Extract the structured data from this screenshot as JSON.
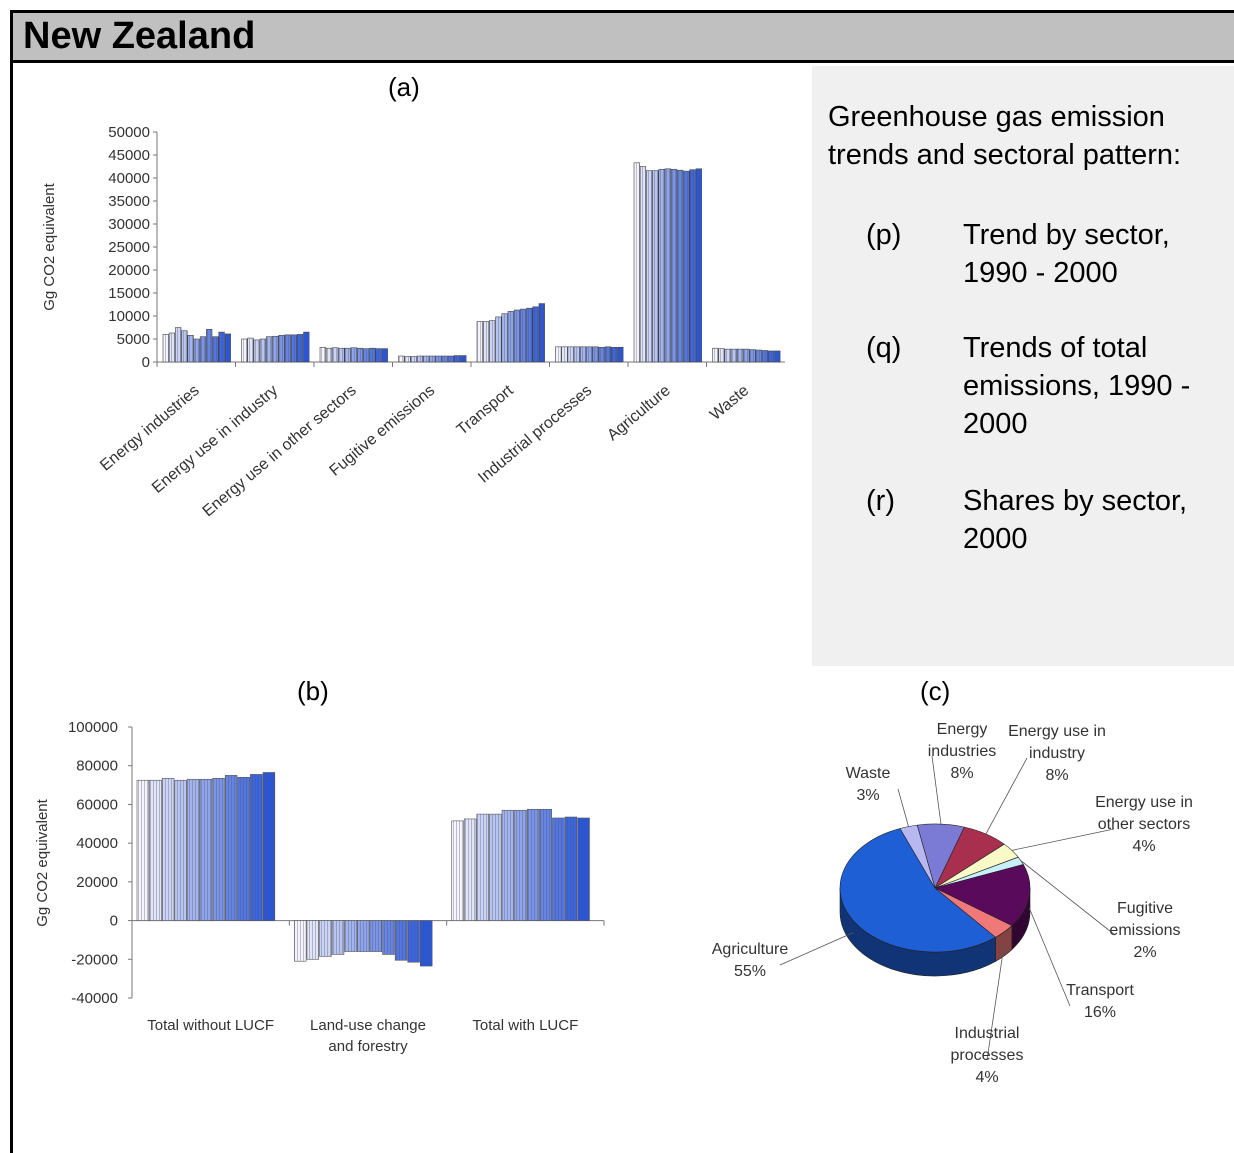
{
  "header": {
    "title": "New Zealand"
  },
  "side_panel": {
    "title": "Greenhouse gas emission trends and sectoral pattern:",
    "items": [
      {
        "label": "(p)",
        "text": "Trend by sector, 1990 - 2000"
      },
      {
        "label": "(q)",
        "text": "Trends of total emissions, 1990 - 2000"
      },
      {
        "label": "(r)",
        "text": "Shares by sector, 2000"
      }
    ]
  },
  "chart_data": [
    {
      "type": "bar",
      "panel_label": "(a)",
      "ylabel": "Gg CO2 equivalent",
      "ylim": [
        0,
        50000
      ],
      "yticks": [
        "0",
        "5000",
        "10000",
        "15000",
        "20000",
        "25000",
        "30000",
        "35000",
        "40000",
        "45000",
        "50000"
      ],
      "categories": [
        "Energy industries",
        "Energy use in industry",
        "Energy use in other sectors",
        "Fugitive emissions",
        "Transport",
        "Industrial processes",
        "Agriculture",
        "Waste"
      ],
      "bars_per_category": 11,
      "values": [
        [
          6000,
          6300,
          7500,
          6800,
          5800,
          5000,
          5500,
          7100,
          5500,
          6500,
          6100
        ],
        [
          5000,
          5200,
          4800,
          5000,
          5500,
          5600,
          5800,
          5900,
          5900,
          6000,
          6500
        ],
        [
          3200,
          3000,
          3100,
          3000,
          3000,
          3100,
          3000,
          2900,
          3000,
          2900,
          2900
        ],
        [
          1300,
          1200,
          1200,
          1300,
          1300,
          1300,
          1300,
          1300,
          1300,
          1400,
          1400
        ],
        [
          8800,
          8800,
          9000,
          9800,
          10500,
          11000,
          11300,
          11500,
          11700,
          12000,
          12700
        ],
        [
          3300,
          3300,
          3300,
          3300,
          3300,
          3300,
          3300,
          3200,
          3300,
          3200,
          3200
        ],
        [
          43300,
          42500,
          41600,
          41600,
          41900,
          42000,
          41900,
          41700,
          41500,
          41800,
          42000
        ],
        [
          3000,
          2900,
          2800,
          2800,
          2800,
          2800,
          2700,
          2600,
          2500,
          2400,
          2400
        ]
      ]
    },
    {
      "type": "bar",
      "panel_label": "(b)",
      "ylabel": "Gg CO2 equivalent",
      "ylim": [
        -40000,
        100000
      ],
      "yticks": [
        "-40000",
        "-20000",
        "0",
        "20000",
        "40000",
        "60000",
        "80000",
        "100000"
      ],
      "categories": [
        "Total without LUCF",
        "Land-use change and forestry",
        "Total with LUCF"
      ],
      "category_lines": [
        [
          "Total without LUCF"
        ],
        [
          "Land-use change",
          "and forestry"
        ],
        [
          "Total with LUCF"
        ]
      ],
      "bars_per_category": 11,
      "values": [
        [
          72500,
          72500,
          73500,
          72500,
          73000,
          73000,
          73500,
          75000,
          74000,
          75500,
          76500
        ],
        [
          -21000,
          -20000,
          -18500,
          -17500,
          -16000,
          -16000,
          -16000,
          -17500,
          -20500,
          -21500,
          -23500
        ],
        [
          51500,
          52500,
          55000,
          55000,
          57000,
          57000,
          57500,
          57500,
          53000,
          53500,
          53000
        ]
      ]
    },
    {
      "type": "pie",
      "panel_label": "(c)",
      "slices": [
        {
          "name": "Energy industries",
          "lines": [
            "Energy",
            "industries",
            "8%"
          ],
          "value": 8,
          "color": "#7b7bd6"
        },
        {
          "name": "Energy use in industry",
          "lines": [
            "Energy use in",
            "industry",
            "8%"
          ],
          "value": 8,
          "color": "#a8304e"
        },
        {
          "name": "Energy use in other sectors",
          "lines": [
            "Energy use in",
            "other sectors",
            "4%"
          ],
          "value": 4,
          "color": "#fafac8"
        },
        {
          "name": "Fugitive emissions",
          "lines": [
            "Fugitive",
            "emissions",
            "2%"
          ],
          "value": 2,
          "color": "#c8f0f8"
        },
        {
          "name": "Transport",
          "lines": [
            "Transport",
            "16%"
          ],
          "value": 16,
          "color": "#5a0a5a"
        },
        {
          "name": "Industrial processes",
          "lines": [
            "Industrial",
            "processes",
            "4%"
          ],
          "value": 4,
          "color": "#f07878"
        },
        {
          "name": "Agriculture",
          "lines": [
            "Agriculture",
            "55%"
          ],
          "value": 55,
          "color": "#1f5fd6"
        },
        {
          "name": "Waste",
          "lines": [
            "Waste",
            "3%"
          ],
          "value": 3,
          "color": "#b8b8f0"
        }
      ]
    }
  ]
}
